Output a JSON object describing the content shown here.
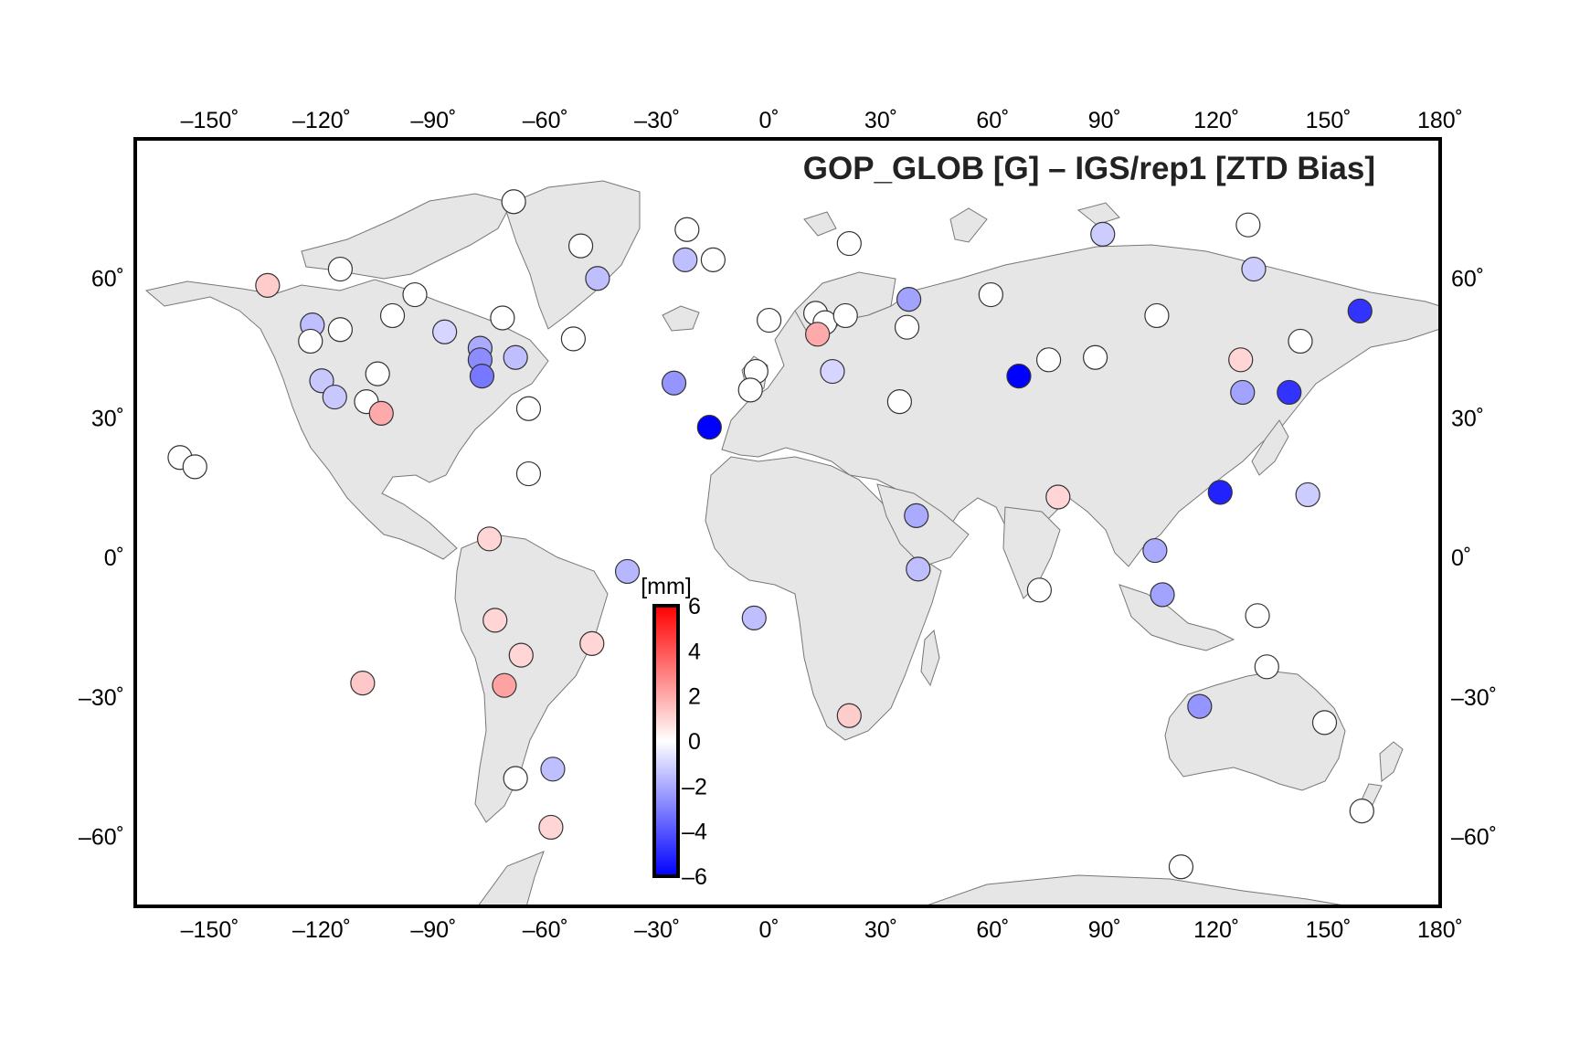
{
  "chart_data": {
    "type": "scatter",
    "projection": "equirectangular",
    "title": "GOP_GLOB [G] – IGS/rep1  [ZTD Bias]",
    "xlim": [
      -170,
      180
    ],
    "ylim": [
      -75,
      90
    ],
    "x_ticks": [
      -150,
      -120,
      -90,
      -60,
      -30,
      0,
      30,
      60,
      90,
      120,
      150,
      180
    ],
    "x_tick_labels": [
      "–150˚",
      "–120˚",
      "–90˚",
      "–60˚",
      "–30˚",
      "0˚",
      "30˚",
      "60˚",
      "90˚",
      "120˚",
      "150˚",
      "180˚"
    ],
    "y_ticks": [
      60,
      30,
      0,
      -30,
      -60
    ],
    "y_tick_labels": [
      "60˚",
      "30˚",
      "0˚",
      "–30˚",
      "–60˚"
    ],
    "colorbar": {
      "unit": "[mm]",
      "range": [
        -6,
        6
      ],
      "ticks": [
        6,
        4,
        2,
        0,
        -2,
        -4,
        -6
      ],
      "tick_labels": [
        "6",
        "4",
        "2",
        "0",
        "–2",
        "–4",
        "–6"
      ],
      "colors": {
        "max": "#ff0000",
        "mid": "#ffffff",
        "min": "#0000ff"
      }
    },
    "land_color": "#e6e6e6",
    "stations": [
      {
        "lon": -68.5,
        "lat": 76.5,
        "bias": 0
      },
      {
        "lon": -50.5,
        "lat": 67.0,
        "bias": 0
      },
      {
        "lon": -22.0,
        "lat": 70.5,
        "bias": 0
      },
      {
        "lon": -22.5,
        "lat": 64.0,
        "bias": -1.5
      },
      {
        "lon": -15.0,
        "lat": 64.0,
        "bias": 0
      },
      {
        "lon": -46.0,
        "lat": 60.0,
        "bias": -1.5
      },
      {
        "lon": -134.5,
        "lat": 58.5,
        "bias": 1.2
      },
      {
        "lon": -115.0,
        "lat": 62.0,
        "bias": 0
      },
      {
        "lon": -95.0,
        "lat": 56.5,
        "bias": 0
      },
      {
        "lon": -71.5,
        "lat": 51.5,
        "bias": 0
      },
      {
        "lon": -101.0,
        "lat": 52.0,
        "bias": 0
      },
      {
        "lon": -87.0,
        "lat": 48.5,
        "bias": -1.0
      },
      {
        "lon": -122.5,
        "lat": 50.0,
        "bias": -1.5
      },
      {
        "lon": -115.0,
        "lat": 49.0,
        "bias": 0
      },
      {
        "lon": -123.0,
        "lat": 46.5,
        "bias": 0
      },
      {
        "lon": -77.5,
        "lat": 45.0,
        "bias": -2.0
      },
      {
        "lon": -77.5,
        "lat": 42.5,
        "bias": -2.7
      },
      {
        "lon": -68.0,
        "lat": 43.0,
        "bias": -1.5
      },
      {
        "lon": -52.5,
        "lat": 47.0,
        "bias": 0
      },
      {
        "lon": -77.0,
        "lat": 39.0,
        "bias": -3.2
      },
      {
        "lon": -120.0,
        "lat": 38.0,
        "bias": -1.3
      },
      {
        "lon": -105.0,
        "lat": 39.5,
        "bias": 0
      },
      {
        "lon": -116.5,
        "lat": 34.5,
        "bias": -1.3
      },
      {
        "lon": -108.0,
        "lat": 33.5,
        "bias": 0
      },
      {
        "lon": -104.0,
        "lat": 31.0,
        "bias": 2.0
      },
      {
        "lon": -64.5,
        "lat": 32.0,
        "bias": 0
      },
      {
        "lon": -158.0,
        "lat": 21.5,
        "bias": 0
      },
      {
        "lon": -154.0,
        "lat": 19.5,
        "bias": 0
      },
      {
        "lon": -64.5,
        "lat": 18.0,
        "bias": 0
      },
      {
        "lon": -25.5,
        "lat": 37.5,
        "bias": -2.5
      },
      {
        "lon": -16.0,
        "lat": 28.0,
        "bias": -6.0
      },
      {
        "lon": -75.0,
        "lat": 4.0,
        "bias": 1.0
      },
      {
        "lon": -38.0,
        "lat": -3.0,
        "bias": -1.7
      },
      {
        "lon": -73.5,
        "lat": -13.5,
        "bias": 1.0
      },
      {
        "lon": -66.5,
        "lat": -21.0,
        "bias": 1.0
      },
      {
        "lon": -47.5,
        "lat": -18.5,
        "bias": 1.0
      },
      {
        "lon": -109.0,
        "lat": -27.0,
        "bias": 1.3
      },
      {
        "lon": -71.0,
        "lat": -27.5,
        "bias": 2.2
      },
      {
        "lon": -68.0,
        "lat": -47.5,
        "bias": 0
      },
      {
        "lon": -58.0,
        "lat": -45.5,
        "bias": -1.5
      },
      {
        "lon": -58.5,
        "lat": -58.0,
        "bias": 1.0
      },
      {
        "lon": -4.0,
        "lat": -13.0,
        "bias": -1.5
      },
      {
        "lon": 0.0,
        "lat": 51.0,
        "bias": 0
      },
      {
        "lon": -3.5,
        "lat": 40.0,
        "bias": 0
      },
      {
        "lon": -5.0,
        "lat": 36.0,
        "bias": 0
      },
      {
        "lon": 12.5,
        "lat": 52.5,
        "bias": 0
      },
      {
        "lon": 15.0,
        "lat": 50.5,
        "bias": 0
      },
      {
        "lon": 13.0,
        "lat": 48.0,
        "bias": 2.0
      },
      {
        "lon": 20.5,
        "lat": 52.0,
        "bias": 0
      },
      {
        "lon": 21.5,
        "lat": 67.5,
        "bias": 0
      },
      {
        "lon": 17.0,
        "lat": 40.0,
        "bias": -1.0
      },
      {
        "lon": 35.0,
        "lat": 33.5,
        "bias": 0
      },
      {
        "lon": 37.5,
        "lat": 55.5,
        "bias": -2.2
      },
      {
        "lon": 37.0,
        "lat": 49.5,
        "bias": 0
      },
      {
        "lon": 59.5,
        "lat": 56.5,
        "bias": 0
      },
      {
        "lon": 89.5,
        "lat": 69.5,
        "bias": -1.2
      },
      {
        "lon": 104.0,
        "lat": 52.0,
        "bias": 0
      },
      {
        "lon": 128.5,
        "lat": 71.5,
        "bias": 0
      },
      {
        "lon": 130.0,
        "lat": 62.0,
        "bias": -1.2
      },
      {
        "lon": 158.5,
        "lat": 53.0,
        "bias": -4.8
      },
      {
        "lon": 142.5,
        "lat": 46.5,
        "bias": 0
      },
      {
        "lon": 126.5,
        "lat": 42.5,
        "bias": 1.0
      },
      {
        "lon": 67.0,
        "lat": 39.0,
        "bias": -6.0
      },
      {
        "lon": 75.0,
        "lat": 42.5,
        "bias": 0
      },
      {
        "lon": 87.5,
        "lat": 43.0,
        "bias": 0
      },
      {
        "lon": 127.0,
        "lat": 35.5,
        "bias": -2.2
      },
      {
        "lon": 139.5,
        "lat": 35.5,
        "bias": -4.8
      },
      {
        "lon": 77.5,
        "lat": 13.0,
        "bias": 1.0
      },
      {
        "lon": 121.0,
        "lat": 14.0,
        "bias": -5.2
      },
      {
        "lon": 144.5,
        "lat": 13.5,
        "bias": -1.2
      },
      {
        "lon": 39.5,
        "lat": 9.0,
        "bias": -2.0
      },
      {
        "lon": 40.0,
        "lat": -2.5,
        "bias": -1.5
      },
      {
        "lon": 72.5,
        "lat": -7.0,
        "bias": 0
      },
      {
        "lon": 103.5,
        "lat": 1.5,
        "bias": -2.0
      },
      {
        "lon": 105.5,
        "lat": -8.0,
        "bias": -2.2
      },
      {
        "lon": 131.0,
        "lat": -12.5,
        "bias": 0
      },
      {
        "lon": 133.5,
        "lat": -23.5,
        "bias": 0
      },
      {
        "lon": 115.5,
        "lat": -32.0,
        "bias": -2.5
      },
      {
        "lon": 149.0,
        "lat": -35.5,
        "bias": 0
      },
      {
        "lon": 21.5,
        "lat": -34.0,
        "bias": 1.2
      },
      {
        "lon": 159.0,
        "lat": -54.5,
        "bias": 0
      },
      {
        "lon": 110.5,
        "lat": -66.5,
        "bias": 0
      }
    ]
  }
}
